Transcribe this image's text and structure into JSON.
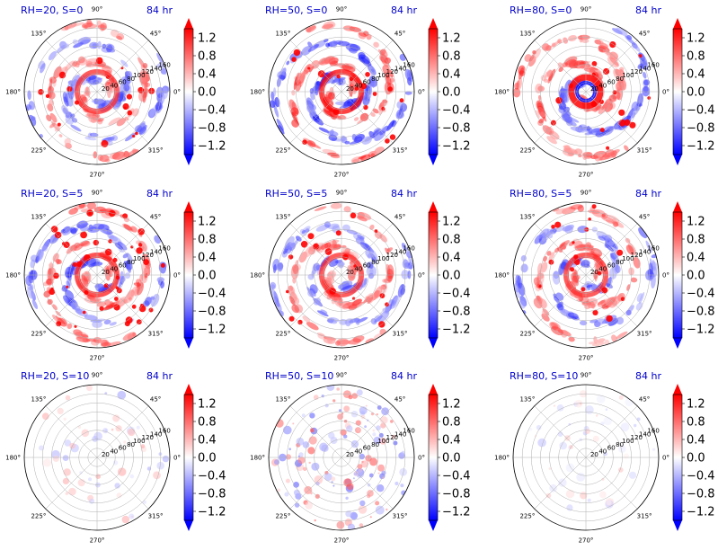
{
  "chart_data": {
    "type": "heatmap",
    "projection": "polar",
    "time_label": "84 hr",
    "angle_ticks": [
      "90°",
      "45°",
      "0°",
      "315°",
      "270°",
      "225°",
      "180°",
      "135°"
    ],
    "radial_ticks": [
      "20",
      "40",
      "60",
      "80",
      "100",
      "120",
      "140",
      "160"
    ],
    "colorbar": {
      "colormap": "bwr",
      "ticks": [
        "1.2",
        "0.8",
        "0.4",
        "0.0",
        "−0.4",
        "−0.8",
        "−1.2"
      ],
      "range": [
        -1.4,
        1.4
      ],
      "extend": "both"
    },
    "panels": [
      {
        "title": "RH=20, S=0",
        "pattern": "spiral",
        "intensity": 0.85
      },
      {
        "title": "RH=50, S=0",
        "pattern": "spiral",
        "intensity": 1.0
      },
      {
        "title": "RH=80, S=0",
        "pattern": "ring",
        "intensity": 0.9
      },
      {
        "title": "RH=20, S=5",
        "pattern": "spiral-patchy",
        "intensity": 0.9
      },
      {
        "title": "RH=50, S=5",
        "pattern": "spiral",
        "intensity": 0.85
      },
      {
        "title": "RH=80, S=5",
        "pattern": "spiral",
        "intensity": 0.85
      },
      {
        "title": "RH=20, S=10",
        "pattern": "sparse",
        "intensity": 0.35
      },
      {
        "title": "RH=50, S=10",
        "pattern": "scattered",
        "intensity": 0.7
      },
      {
        "title": "RH=80, S=10",
        "pattern": "sparse",
        "intensity": 0.25
      }
    ]
  }
}
